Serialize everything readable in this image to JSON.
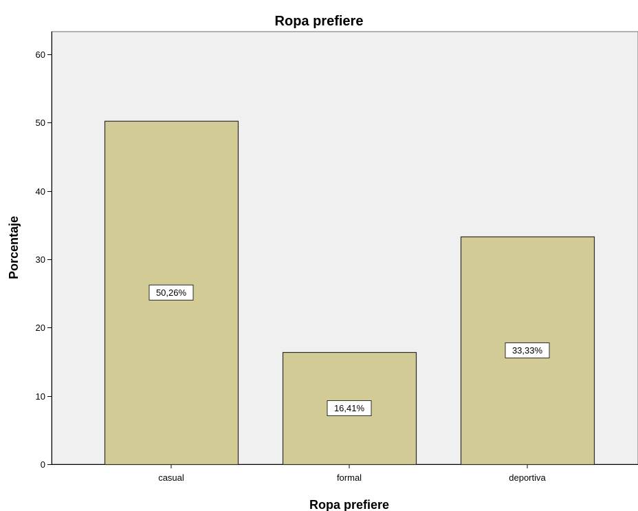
{
  "chart_data": {
    "type": "bar",
    "title": "Ropa prefiere",
    "xlabel": "Ropa prefiere",
    "ylabel": "Porcentaje",
    "categories": [
      "casual",
      "formal",
      "deportiva"
    ],
    "values": [
      50.26,
      16.41,
      33.33
    ],
    "value_labels": [
      "50,26%",
      "16,41%",
      "33,33%"
    ],
    "ylim": [
      0,
      60
    ],
    "yticks": [
      0,
      10,
      20,
      30,
      40,
      50,
      60
    ],
    "grid": false,
    "legend": "none",
    "colors": {
      "bar_fill": "#d2cb96",
      "bar_stroke": "#2b2b2b",
      "plot_background": "#f0f0f0",
      "axis": "#000000"
    }
  }
}
